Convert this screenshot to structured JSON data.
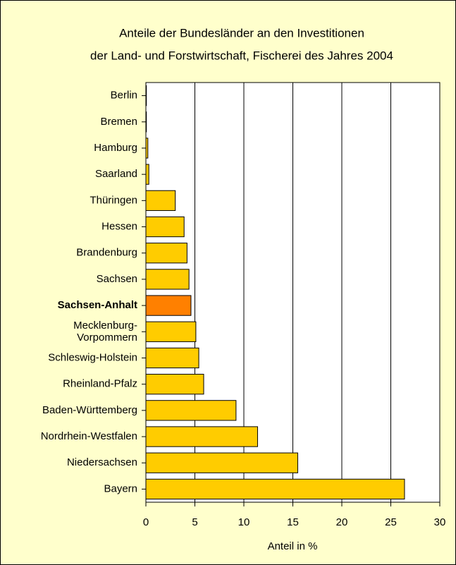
{
  "chart_data": {
    "type": "bar",
    "orientation": "horizontal",
    "title": [
      "Anteile der Bundesländer an den Investitionen",
      "der Land- und Forstwirtschaft, Fischerei des Jahres 2004"
    ],
    "xlabel": "Anteil in %",
    "categories": [
      "Berlin",
      "Bremen",
      "Hamburg",
      "Saarland",
      "Thüringen",
      "Hessen",
      "Brandenburg",
      "Sachsen",
      "Sachsen-Anhalt",
      "Mecklenburg-\nVorpommern",
      "Schleswig-Holstein",
      "Rheinland-Pfalz",
      "Baden-Württemberg",
      "Nordrhein-Westfalen",
      "Niedersachsen",
      "Bayern"
    ],
    "values": [
      0.05,
      0.05,
      0.2,
      0.3,
      3.0,
      3.9,
      4.2,
      4.4,
      4.6,
      5.1,
      5.4,
      5.9,
      9.2,
      11.4,
      15.5,
      26.4
    ],
    "color": "#ffcc00",
    "highlight_color": "#ff8000",
    "highlight_index": 8,
    "xlim": [
      0,
      30
    ],
    "xticks": [
      0,
      5,
      10,
      15,
      20,
      25,
      30
    ],
    "grid": true
  }
}
